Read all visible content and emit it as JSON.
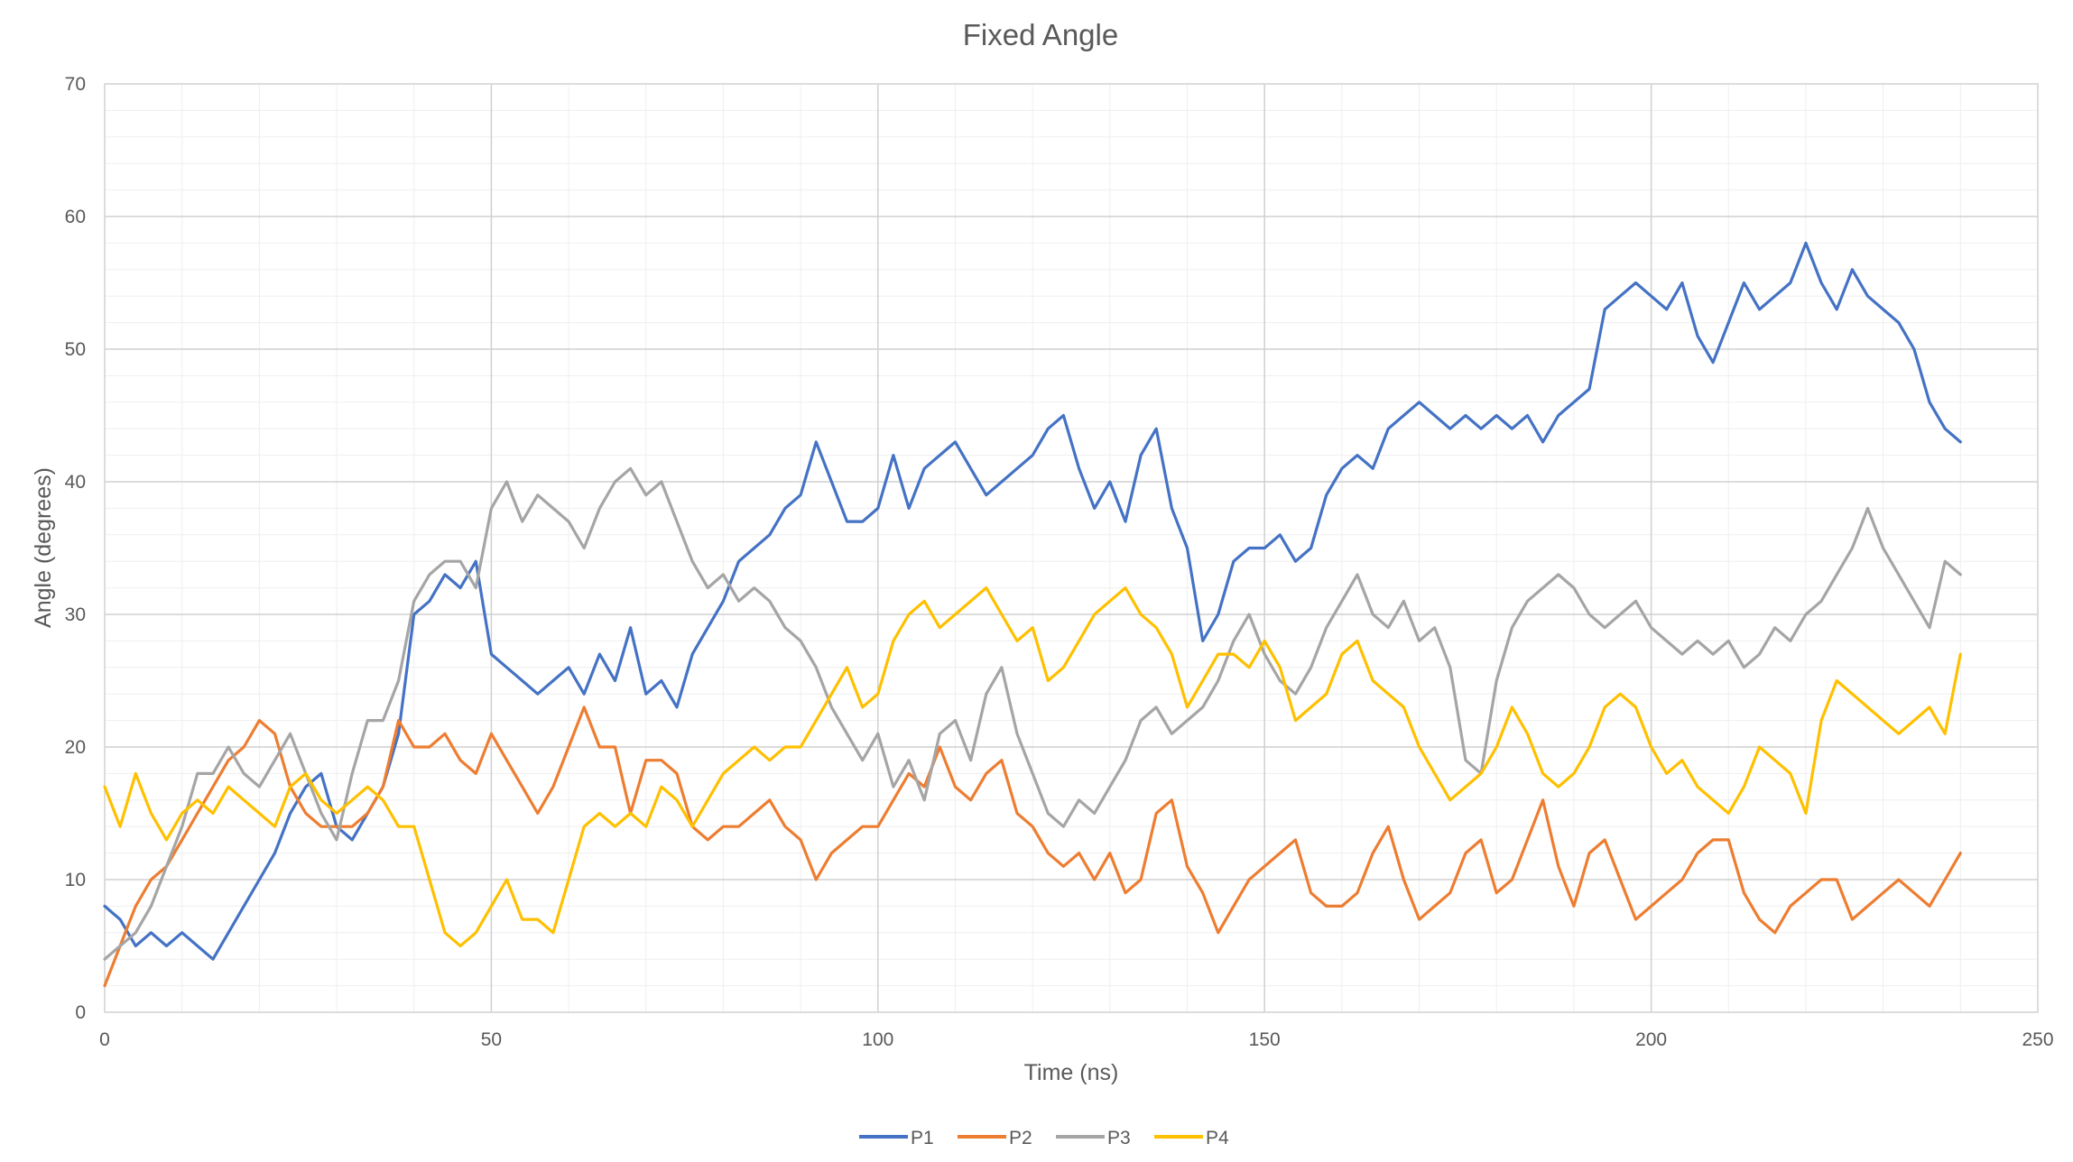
{
  "chart_data": {
    "type": "line",
    "title": "Fixed Angle",
    "xlabel": "Time (ns)",
    "ylabel": "Angle (degrees)",
    "xlim": [
      0,
      250
    ],
    "ylim": [
      0,
      70
    ],
    "xticks": [
      0,
      50,
      100,
      150,
      200,
      250
    ],
    "yticks": [
      0,
      10,
      20,
      30,
      40,
      50,
      60,
      70
    ],
    "grid": true,
    "legend_position": "bottom",
    "series": [
      {
        "name": "P1",
        "color": "#4472C4",
        "x": [
          0,
          2,
          4,
          6,
          8,
          10,
          12,
          14,
          16,
          18,
          20,
          22,
          24,
          26,
          28,
          30,
          32,
          34,
          36,
          38,
          40,
          42,
          44,
          46,
          48,
          50,
          52,
          54,
          56,
          58,
          60,
          62,
          64,
          66,
          68,
          70,
          72,
          74,
          76,
          78,
          80,
          82,
          84,
          86,
          88,
          90,
          92,
          94,
          96,
          98,
          100,
          102,
          104,
          106,
          108,
          110,
          112,
          114,
          116,
          118,
          120,
          122,
          124,
          126,
          128,
          130,
          132,
          134,
          136,
          138,
          140,
          142,
          144,
          146,
          148,
          150,
          152,
          154,
          156,
          158,
          160,
          162,
          164,
          166,
          168,
          170,
          172,
          174,
          176,
          178,
          180,
          182,
          184,
          186,
          188,
          190,
          192,
          194,
          196,
          198,
          200,
          202,
          204,
          206,
          208,
          210,
          212,
          214,
          216,
          218,
          220,
          222,
          224,
          226,
          228,
          230,
          232,
          234,
          236,
          238,
          240
        ],
        "y": [
          8,
          7,
          5,
          6,
          5,
          6,
          5,
          4,
          6,
          8,
          10,
          12,
          15,
          17,
          18,
          14,
          13,
          15,
          17,
          21,
          30,
          31,
          33,
          32,
          34,
          27,
          26,
          25,
          24,
          25,
          26,
          24,
          27,
          25,
          29,
          24,
          25,
          23,
          27,
          29,
          31,
          34,
          35,
          36,
          38,
          39,
          43,
          40,
          37,
          37,
          38,
          42,
          38,
          41,
          42,
          43,
          41,
          39,
          40,
          41,
          42,
          44,
          45,
          41,
          38,
          40,
          37,
          42,
          44,
          38,
          35,
          28,
          30,
          34,
          35,
          35,
          36,
          34,
          35,
          39,
          41,
          42,
          41,
          44,
          45,
          46,
          45,
          44,
          45,
          44,
          45,
          44,
          45,
          43,
          45,
          46,
          47,
          53,
          54,
          55,
          54,
          53,
          55,
          51,
          49,
          52,
          55,
          53,
          54,
          55,
          58,
          55,
          53,
          56,
          54,
          53,
          52,
          50,
          46,
          44,
          43
        ]
      },
      {
        "name": "P2",
        "color": "#ED7D31",
        "x": [
          0,
          2,
          4,
          6,
          8,
          10,
          12,
          14,
          16,
          18,
          20,
          22,
          24,
          26,
          28,
          30,
          32,
          34,
          36,
          38,
          40,
          42,
          44,
          46,
          48,
          50,
          52,
          54,
          56,
          58,
          60,
          62,
          64,
          66,
          68,
          70,
          72,
          74,
          76,
          78,
          80,
          82,
          84,
          86,
          88,
          90,
          92,
          94,
          96,
          98,
          100,
          102,
          104,
          106,
          108,
          110,
          112,
          114,
          116,
          118,
          120,
          122,
          124,
          126,
          128,
          130,
          132,
          134,
          136,
          138,
          140,
          142,
          144,
          146,
          148,
          150,
          152,
          154,
          156,
          158,
          160,
          162,
          164,
          166,
          168,
          170,
          172,
          174,
          176,
          178,
          180,
          182,
          184,
          186,
          188,
          190,
          192,
          194,
          196,
          198,
          200,
          202,
          204,
          206,
          208,
          210,
          212,
          214,
          216,
          218,
          220,
          222,
          224,
          226,
          228,
          230,
          232,
          234,
          236,
          238,
          240
        ],
        "y": [
          2,
          5,
          8,
          10,
          11,
          13,
          15,
          17,
          19,
          20,
          22,
          21,
          17,
          15,
          14,
          14,
          14,
          15,
          17,
          22,
          20,
          20,
          21,
          19,
          18,
          21,
          19,
          17,
          15,
          17,
          20,
          23,
          20,
          20,
          15,
          19,
          19,
          18,
          14,
          13,
          14,
          14,
          15,
          16,
          14,
          13,
          10,
          12,
          13,
          14,
          14,
          16,
          18,
          17,
          20,
          17,
          16,
          18,
          19,
          15,
          14,
          12,
          11,
          12,
          10,
          12,
          9,
          10,
          15,
          16,
          11,
          9,
          6,
          8,
          10,
          11,
          12,
          13,
          9,
          8,
          8,
          9,
          12,
          14,
          10,
          7,
          8,
          9,
          12,
          13,
          9,
          10,
          13,
          16,
          11,
          8,
          12,
          13,
          10,
          7,
          8,
          9,
          10,
          12,
          13,
          13,
          9,
          7,
          6,
          8,
          9,
          10,
          10,
          7,
          8,
          9,
          10,
          9,
          8,
          10,
          12
        ]
      },
      {
        "name": "P3",
        "color": "#A5A5A5",
        "x": [
          0,
          2,
          4,
          6,
          8,
          10,
          12,
          14,
          16,
          18,
          20,
          22,
          24,
          26,
          28,
          30,
          32,
          34,
          36,
          38,
          40,
          42,
          44,
          46,
          48,
          50,
          52,
          54,
          56,
          58,
          60,
          62,
          64,
          66,
          68,
          70,
          72,
          74,
          76,
          78,
          80,
          82,
          84,
          86,
          88,
          90,
          92,
          94,
          96,
          98,
          100,
          102,
          104,
          106,
          108,
          110,
          112,
          114,
          116,
          118,
          120,
          122,
          124,
          126,
          128,
          130,
          132,
          134,
          136,
          138,
          140,
          142,
          144,
          146,
          148,
          150,
          152,
          154,
          156,
          158,
          160,
          162,
          164,
          166,
          168,
          170,
          172,
          174,
          176,
          178,
          180,
          182,
          184,
          186,
          188,
          190,
          192,
          194,
          196,
          198,
          200,
          202,
          204,
          206,
          208,
          210,
          212,
          214,
          216,
          218,
          220,
          222,
          224,
          226,
          228,
          230,
          232,
          234,
          236,
          238,
          240
        ],
        "y": [
          4,
          5,
          6,
          8,
          11,
          14,
          18,
          18,
          20,
          18,
          17,
          19,
          21,
          18,
          15,
          13,
          18,
          22,
          22,
          25,
          31,
          33,
          34,
          34,
          32,
          38,
          40,
          37,
          39,
          38,
          37,
          35,
          38,
          40,
          41,
          39,
          40,
          37,
          34,
          32,
          33,
          31,
          32,
          31,
          29,
          28,
          26,
          23,
          21,
          19,
          21,
          17,
          19,
          16,
          21,
          22,
          19,
          24,
          26,
          21,
          18,
          15,
          14,
          16,
          15,
          17,
          19,
          22,
          23,
          21,
          22,
          23,
          25,
          28,
          30,
          27,
          25,
          24,
          26,
          29,
          31,
          33,
          30,
          29,
          31,
          28,
          29,
          26,
          19,
          18,
          25,
          29,
          31,
          32,
          33,
          32,
          30,
          29,
          30,
          31,
          29,
          28,
          27,
          28,
          27,
          28,
          26,
          27,
          29,
          28,
          30,
          31,
          33,
          35,
          38,
          35,
          33,
          31,
          29,
          34,
          33
        ]
      },
      {
        "name": "P4",
        "color": "#FFC000",
        "x": [
          0,
          2,
          4,
          6,
          8,
          10,
          12,
          14,
          16,
          18,
          20,
          22,
          24,
          26,
          28,
          30,
          32,
          34,
          36,
          38,
          40,
          42,
          44,
          46,
          48,
          50,
          52,
          54,
          56,
          58,
          60,
          62,
          64,
          66,
          68,
          70,
          72,
          74,
          76,
          78,
          80,
          82,
          84,
          86,
          88,
          90,
          92,
          94,
          96,
          98,
          100,
          102,
          104,
          106,
          108,
          110,
          112,
          114,
          116,
          118,
          120,
          122,
          124,
          126,
          128,
          130,
          132,
          134,
          136,
          138,
          140,
          142,
          144,
          146,
          148,
          150,
          152,
          154,
          156,
          158,
          160,
          162,
          164,
          166,
          168,
          170,
          172,
          174,
          176,
          178,
          180,
          182,
          184,
          186,
          188,
          190,
          192,
          194,
          196,
          198,
          200,
          202,
          204,
          206,
          208,
          210,
          212,
          214,
          216,
          218,
          220,
          222,
          224,
          226,
          228,
          230,
          232,
          234,
          236,
          238,
          240
        ],
        "y": [
          17,
          14,
          18,
          15,
          13,
          15,
          16,
          15,
          17,
          16,
          15,
          14,
          17,
          18,
          16,
          15,
          16,
          17,
          16,
          14,
          14,
          10,
          6,
          5,
          6,
          8,
          10,
          7,
          7,
          6,
          10,
          14,
          15,
          14,
          15,
          14,
          17,
          16,
          14,
          16,
          18,
          19,
          20,
          19,
          20,
          20,
          22,
          24,
          26,
          23,
          24,
          28,
          30,
          31,
          29,
          30,
          31,
          32,
          30,
          28,
          29,
          25,
          26,
          28,
          30,
          31,
          32,
          30,
          29,
          27,
          23,
          25,
          27,
          27,
          26,
          28,
          26,
          22,
          23,
          24,
          27,
          28,
          25,
          24,
          23,
          20,
          18,
          16,
          17,
          18,
          20,
          23,
          21,
          18,
          17,
          18,
          20,
          23,
          24,
          23,
          20,
          18,
          19,
          17,
          16,
          15,
          17,
          20,
          19,
          18,
          15,
          22,
          25,
          24,
          23,
          22,
          21,
          22,
          23,
          21,
          27
        ]
      }
    ]
  }
}
